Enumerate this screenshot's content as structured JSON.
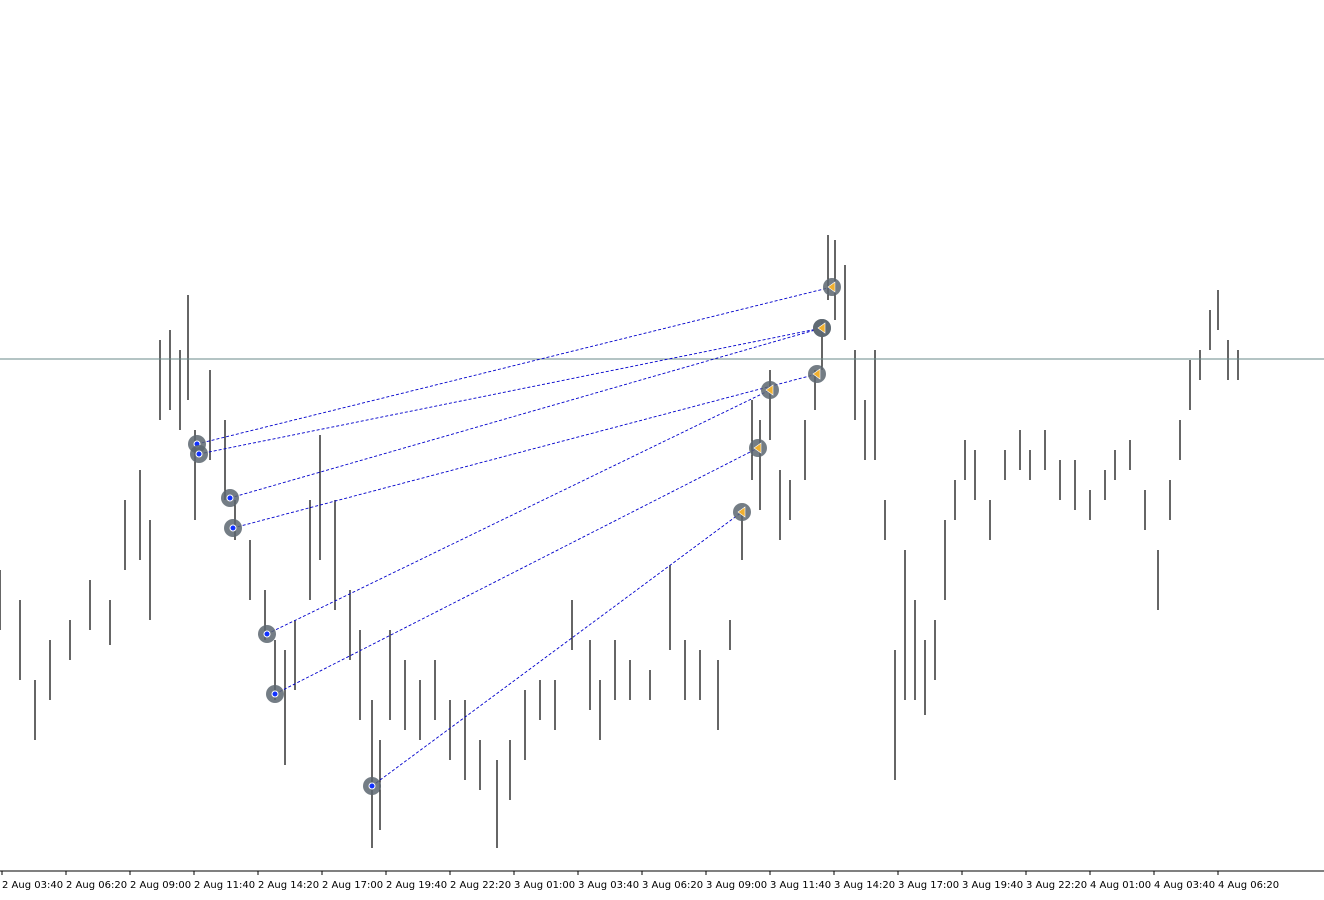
{
  "chart_data": {
    "type": "ohlc",
    "xlim": [
      0,
      1324
    ],
    "ylim": [
      0,
      870
    ],
    "xticks": [
      {
        "value": 2,
        "label": "2 Aug 03:40"
      },
      {
        "value": 66,
        "label": "2 Aug 06:20"
      },
      {
        "value": 130,
        "label": "2 Aug 09:00"
      },
      {
        "value": 194,
        "label": "2 Aug 11:40"
      },
      {
        "value": 258,
        "label": "2 Aug 14:20"
      },
      {
        "value": 322,
        "label": "2 Aug 17:00"
      },
      {
        "value": 386,
        "label": "2 Aug 19:40"
      },
      {
        "value": 450,
        "label": "2 Aug 22:20"
      },
      {
        "value": 514,
        "label": "3 Aug 01:00"
      },
      {
        "value": 578,
        "label": "3 Aug 03:40"
      },
      {
        "value": 642,
        "label": "3 Aug 06:20"
      },
      {
        "value": 706,
        "label": "3 Aug 09:00"
      },
      {
        "value": 770,
        "label": "3 Aug 11:40"
      },
      {
        "value": 834,
        "label": "3 Aug 14:20"
      },
      {
        "value": 898,
        "label": "3 Aug 17:00"
      },
      {
        "value": 962,
        "label": "3 Aug 19:40"
      },
      {
        "value": 1026,
        "label": "3 Aug 22:20"
      },
      {
        "value": 1090,
        "label": "4 Aug 01:00"
      },
      {
        "value": 1154,
        "label": "4 Aug 03:40"
      },
      {
        "value": 1218,
        "label": "4 Aug 06:20"
      }
    ],
    "x": [
      0,
      20,
      35,
      50,
      70,
      90,
      110,
      125,
      140,
      150,
      160,
      170,
      180,
      188,
      195,
      210,
      225,
      235,
      250,
      265,
      275,
      285,
      295,
      310,
      320,
      335,
      350,
      360,
      372,
      380,
      390,
      405,
      420,
      435,
      450,
      465,
      480,
      497,
      510,
      525,
      540,
      555,
      572,
      590,
      600,
      615,
      630,
      650,
      670,
      685,
      700,
      718,
      730,
      742,
      752,
      760,
      770,
      780,
      790,
      805,
      815,
      822,
      828,
      835,
      845,
      855,
      865,
      875,
      885,
      895,
      905,
      915,
      925,
      935,
      945,
      955,
      965,
      975,
      990,
      1005,
      1020,
      1030,
      1045,
      1060,
      1075,
      1090,
      1105,
      1115,
      1130,
      1145,
      1158,
      1170,
      1180,
      1190,
      1200,
      1210,
      1218,
      1228,
      1238
    ],
    "high": [
      300,
      270,
      190,
      230,
      250,
      290,
      270,
      370,
      400,
      350,
      530,
      540,
      520,
      575,
      440,
      500,
      450,
      370,
      330,
      280,
      230,
      220,
      250,
      370,
      435,
      370,
      280,
      240,
      170,
      130,
      240,
      210,
      190,
      210,
      170,
      170,
      130,
      110,
      130,
      180,
      190,
      190,
      270,
      230,
      190,
      230,
      210,
      200,
      305,
      230,
      220,
      210,
      250,
      360,
      470,
      450,
      500,
      400,
      390,
      450,
      500,
      550,
      635,
      630,
      605,
      520,
      470,
      520,
      370,
      220,
      320,
      270,
      230,
      250,
      350,
      390,
      430,
      420,
      370,
      420,
      440,
      420,
      440,
      410,
      410,
      380,
      400,
      420,
      430,
      380,
      320,
      390,
      450,
      510,
      520,
      560,
      580,
      530,
      520
    ],
    "low": [
      240,
      190,
      130,
      170,
      210,
      240,
      225,
      300,
      310,
      250,
      450,
      460,
      440,
      470,
      350,
      410,
      370,
      330,
      270,
      230,
      170,
      105,
      180,
      270,
      310,
      260,
      210,
      150,
      22,
      40,
      150,
      140,
      130,
      150,
      110,
      90,
      80,
      22,
      70,
      110,
      150,
      140,
      220,
      160,
      130,
      170,
      170,
      170,
      220,
      170,
      170,
      140,
      220,
      310,
      390,
      360,
      430,
      330,
      350,
      390,
      460,
      500,
      570,
      550,
      530,
      450,
      410,
      410,
      330,
      90,
      170,
      170,
      155,
      190,
      270,
      350,
      390,
      370,
      330,
      390,
      400,
      390,
      400,
      370,
      360,
      350,
      370,
      390,
      400,
      340,
      260,
      350,
      410,
      460,
      490,
      520,
      540,
      490,
      490
    ],
    "hline": 511,
    "trades": [
      {
        "open": [
          197,
          426
        ],
        "close": [
          832,
          583
        ]
      },
      {
        "open": [
          199,
          416
        ],
        "close": [
          822,
          542
        ]
      },
      {
        "open": [
          230,
          372
        ],
        "close": [
          822,
          542
        ]
      },
      {
        "open": [
          233,
          342
        ],
        "close": [
          817,
          496
        ]
      },
      {
        "open": [
          267,
          236
        ],
        "close": [
          770,
          480
        ]
      },
      {
        "open": [
          275,
          176
        ],
        "close": [
          758,
          422
        ]
      },
      {
        "open": [
          372,
          84
        ],
        "close": [
          742,
          358
        ]
      }
    ]
  }
}
